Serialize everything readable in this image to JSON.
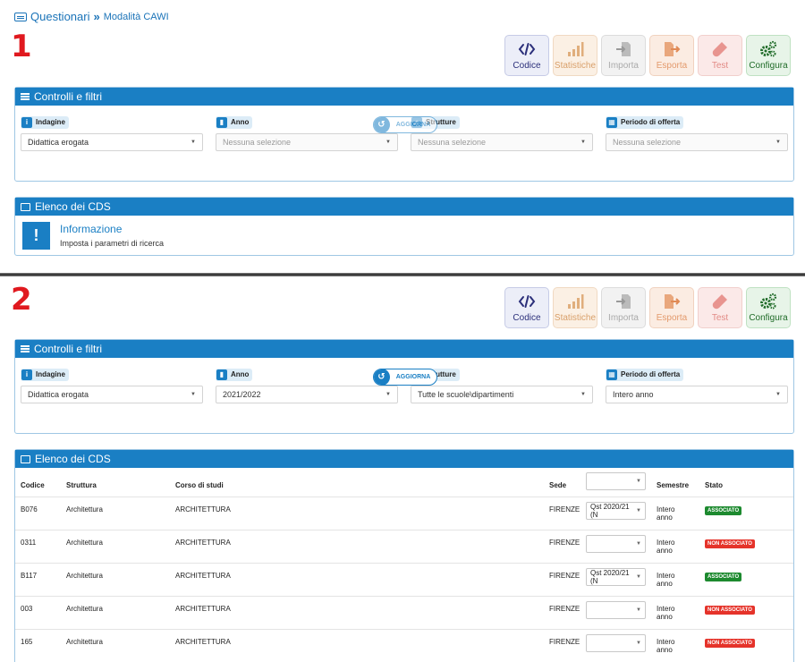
{
  "breadcrumb": {
    "main": "Questionari",
    "separator": "»",
    "sub": "Modalità CAWI"
  },
  "sections": [
    {
      "number": "1",
      "toolbar": [
        {
          "label": "Codice",
          "icon": "code-icon"
        },
        {
          "label": "Statistiche",
          "icon": "bar-chart-icon"
        },
        {
          "label": "Importa",
          "icon": "import-icon"
        },
        {
          "label": "Esporta",
          "icon": "export-icon"
        },
        {
          "label": "Test",
          "icon": "test-tube-icon"
        },
        {
          "label": "Configura",
          "icon": "gears-icon"
        }
      ],
      "filters_panel": {
        "title": "Controlli e filtri",
        "filters": [
          {
            "label": "Indagine",
            "value": "Didattica erogata"
          },
          {
            "label": "Anno",
            "value": "Nessuna selezione"
          },
          {
            "label": "Strutture",
            "value": "Nessuna selezione"
          },
          {
            "label": "Periodo di offerta",
            "value": "Nessuna selezione"
          }
        ],
        "button": "AGGIORNA"
      },
      "list_panel": {
        "title": "Elenco dei CDS",
        "info_title": "Informazione",
        "info_text": "Imposta i parametri di ricerca"
      }
    },
    {
      "number": "2",
      "toolbar": [
        {
          "label": "Codice",
          "icon": "code-icon"
        },
        {
          "label": "Statistiche",
          "icon": "bar-chart-icon"
        },
        {
          "label": "Importa",
          "icon": "import-icon"
        },
        {
          "label": "Esporta",
          "icon": "export-icon"
        },
        {
          "label": "Test",
          "icon": "test-tube-icon"
        },
        {
          "label": "Configura",
          "icon": "gears-icon"
        }
      ],
      "filters_panel": {
        "title": "Controlli e filtri",
        "filters": [
          {
            "label": "Indagine",
            "value": "Didattica erogata"
          },
          {
            "label": "Anno",
            "value": "2021/2022"
          },
          {
            "label": "Strutture",
            "value": "Tutte le scuole\\dipartimenti"
          },
          {
            "label": "Periodo di offerta",
            "value": "Intero anno"
          }
        ],
        "button": "AGGIORNA"
      },
      "list_panel": {
        "title": "Elenco dei CDS",
        "columns": {
          "codice": "Codice",
          "struttura": "Struttura",
          "corso": "Corso di studi",
          "sede": "Sede",
          "semestre": "Semestre",
          "stato": "Stato"
        },
        "rows": [
          {
            "codice": "B076",
            "struttura": "Architettura",
            "corso": "ARCHITETTURA",
            "sede": "FIRENZE",
            "questionario": "Qst 2020/21 (N",
            "semestre_1": "Intero",
            "semestre_2": "anno",
            "stato": "ASSOCIATO",
            "associated": true
          },
          {
            "codice": "0311",
            "struttura": "Architettura",
            "corso": "ARCHITETTURA",
            "sede": "FIRENZE",
            "questionario": "",
            "semestre_1": "Intero",
            "semestre_2": "anno",
            "stato": "NON ASSOCIATO",
            "associated": false
          },
          {
            "codice": "B117",
            "struttura": "Architettura",
            "corso": "ARCHITETTURA",
            "sede": "FIRENZE",
            "questionario": "Qst 2020/21 (N",
            "semestre_1": "Intero",
            "semestre_2": "anno",
            "stato": "ASSOCIATO",
            "associated": true
          },
          {
            "codice": "003",
            "struttura": "Architettura",
            "corso": "ARCHITETTURA",
            "sede": "FIRENZE",
            "questionario": "",
            "semestre_1": "Intero",
            "semestre_2": "anno",
            "stato": "NON ASSOCIATO",
            "associated": false
          },
          {
            "codice": "165",
            "struttura": "Architettura",
            "corso": "ARCHITETTURA",
            "sede": "FIRENZE",
            "questionario": "",
            "semestre_1": "Intero",
            "semestre_2": "anno",
            "stato": "NON ASSOCIATO",
            "associated": false
          }
        ]
      }
    }
  ]
}
